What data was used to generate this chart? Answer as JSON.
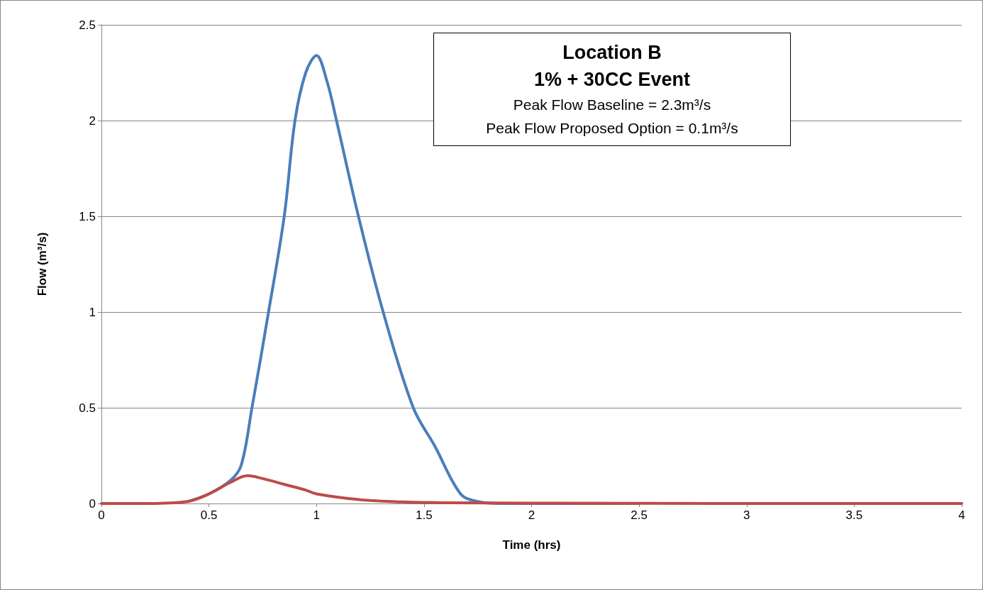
{
  "chart_data": {
    "type": "line",
    "title": "Location B",
    "subtitle": "1% + 30CC Event",
    "annotations": [
      "Peak Flow Baseline = 2.3m³/s",
      "Peak Flow Proposed Option = 0.1m³/s"
    ],
    "xlabel": "Time (hrs)",
    "ylabel": "Flow (m³/s)",
    "xlim": [
      0,
      4
    ],
    "xticks": [
      0,
      0.5,
      1,
      1.5,
      2,
      2.5,
      3,
      3.5,
      4
    ],
    "ylim": [
      0,
      2.5
    ],
    "yticks": [
      0,
      0.5,
      1,
      1.5,
      2,
      2.5
    ],
    "grid": "y",
    "marker": "none",
    "line_style": "solid",
    "series": [
      {
        "color": "#4a7ebb",
        "x": [
          0.4,
          0.5,
          0.6,
          0.65,
          0.7,
          0.777,
          0.85,
          0.9,
          0.95,
          1.0,
          1.05,
          1.093,
          1.195,
          1.31,
          1.45,
          1.55,
          1.67,
          1.75,
          1.85,
          2.5
        ],
        "values": [
          0.01,
          0.05,
          0.12,
          0.2,
          0.5,
          1.0,
          1.5,
          2.0,
          2.25,
          2.34,
          2.2,
          2.0,
          1.5,
          1.0,
          0.5,
          0.3,
          0.05,
          0.01,
          0,
          0
        ]
      },
      {
        "color": "#be4b48",
        "x": [
          0,
          0.2,
          0.4,
          0.5,
          0.6,
          0.68,
          0.75,
          0.85,
          0.95,
          1.0,
          1.2,
          1.4,
          1.6,
          2.0,
          3,
          4
        ],
        "values": [
          0,
          0,
          0.01,
          0.05,
          0.11,
          0.145,
          0.13,
          0.1,
          0.07,
          0.05,
          0.02,
          0.008,
          0.004,
          0.002,
          0,
          0
        ]
      }
    ]
  }
}
